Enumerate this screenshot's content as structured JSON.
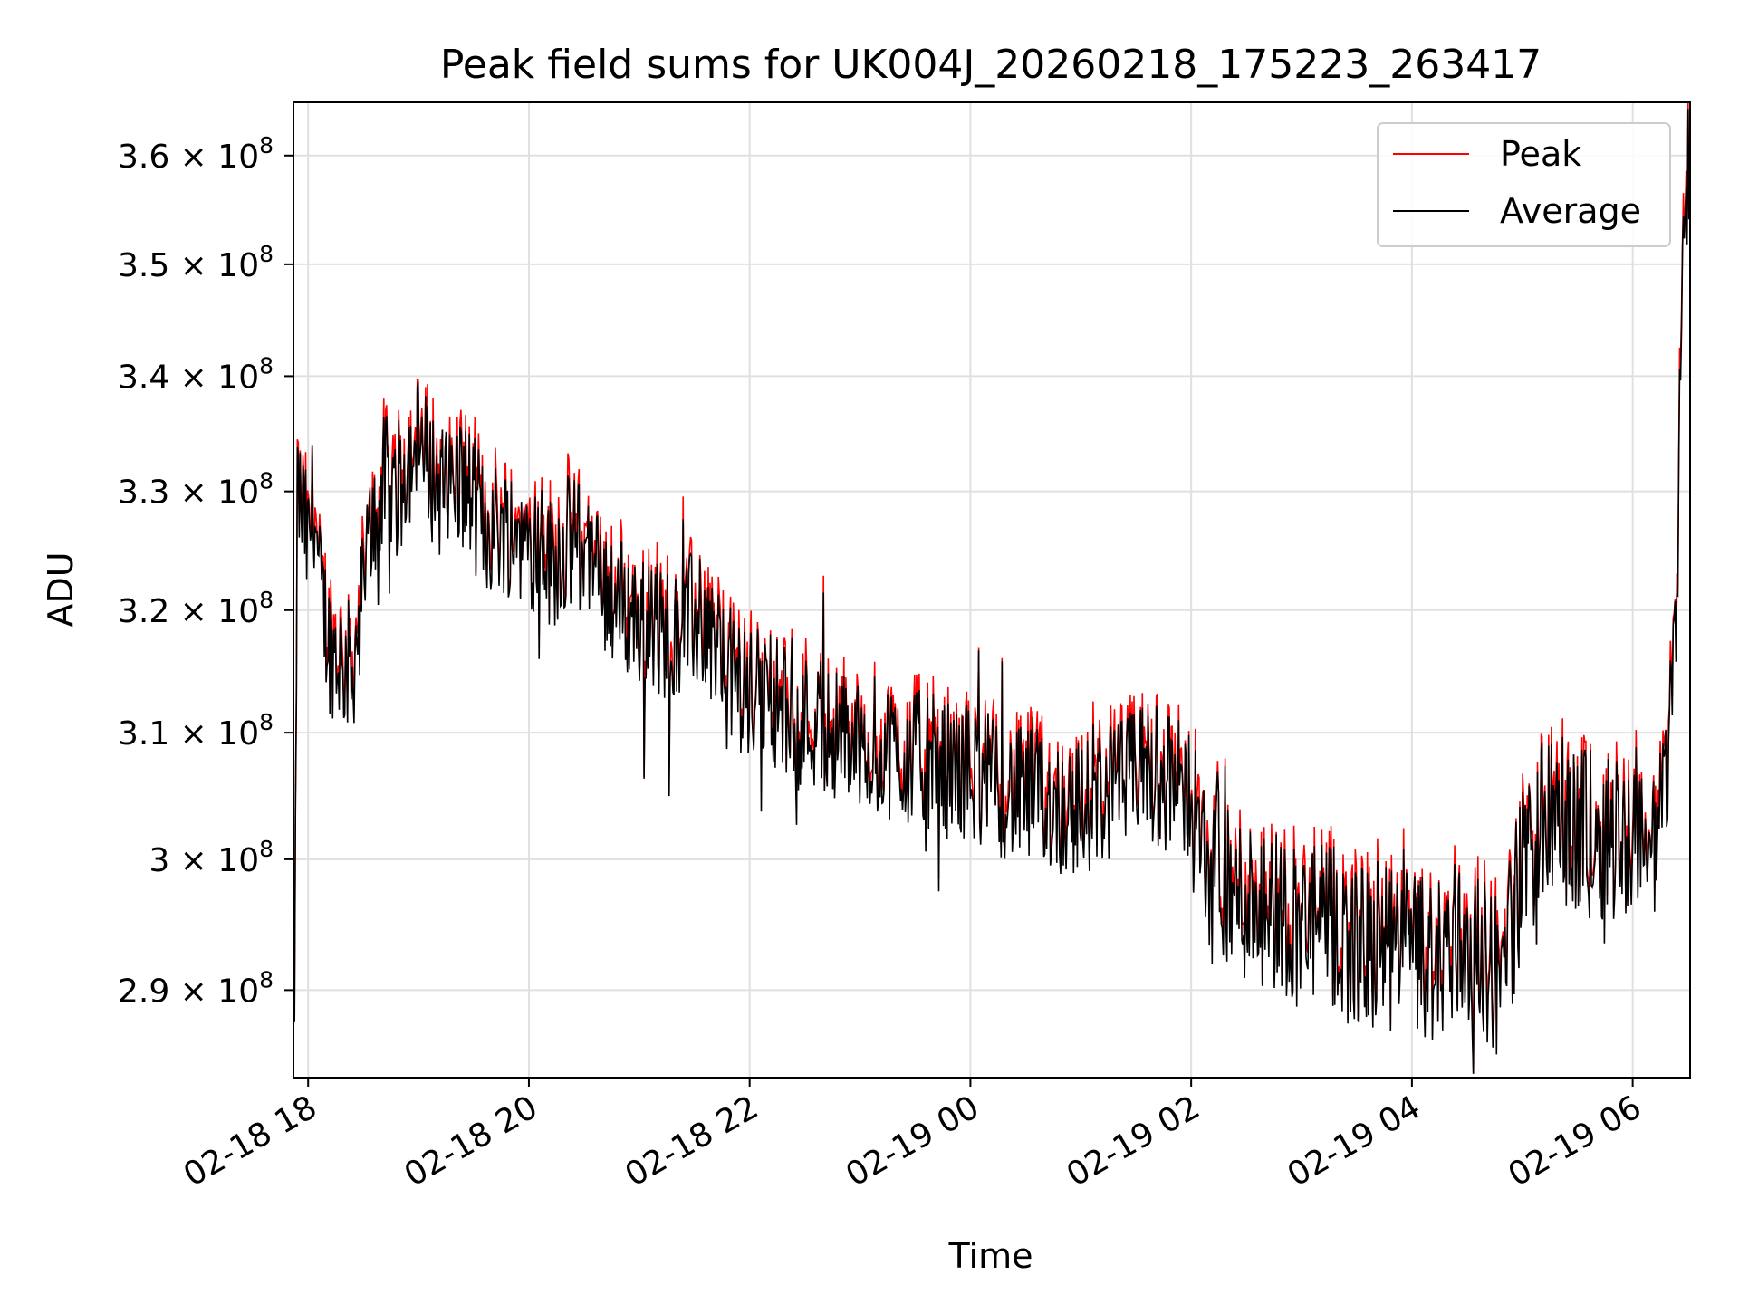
{
  "chart_data": {
    "type": "line",
    "title": "Peak field sums for UK004J_20260218_175223_263417",
    "xlabel": "Time",
    "ylabel": "ADU",
    "x_range": [
      "02-18 17:52",
      "02-19 06:32"
    ],
    "y_scale": "log",
    "ylim": [
      283500000,
      365000000
    ],
    "grid": true,
    "legend_position": "top-right",
    "x_ticks": [
      {
        "hours": 0,
        "label": "02-18 18"
      },
      {
        "hours": 2,
        "label": "02-18 20"
      },
      {
        "hours": 4,
        "label": "02-18 22"
      },
      {
        "hours": 6,
        "label": "02-19 00"
      },
      {
        "hours": 8,
        "label": "02-19 02"
      },
      {
        "hours": 10,
        "label": "02-19 04"
      },
      {
        "hours": 12,
        "label": "02-19 06"
      }
    ],
    "y_ticks": [
      {
        "value": 290000000,
        "mantissa": "2.9",
        "exponent": "8"
      },
      {
        "value": 300000000,
        "mantissa": "3",
        "exponent": "8"
      },
      {
        "value": 310000000,
        "mantissa": "3.1",
        "exponent": "8"
      },
      {
        "value": 320000000,
        "mantissa": "3.2",
        "exponent": "8"
      },
      {
        "value": 330000000,
        "mantissa": "3.3",
        "exponent": "8"
      },
      {
        "value": 340000000,
        "mantissa": "3.4",
        "exponent": "8"
      },
      {
        "value": 350000000,
        "mantissa": "3.5",
        "exponent": "8"
      },
      {
        "value": 360000000,
        "mantissa": "3.6",
        "exponent": "8"
      }
    ],
    "times_label": "x"
  },
  "sampled_series": {
    "description": "hours since 02-18 18:00, approximate value (x1e8 ADU) of the average curve",
    "x_hours": [
      -0.12,
      -0.1,
      -0.05,
      0.0,
      0.05,
      0.1,
      0.2,
      0.3,
      0.4,
      0.5,
      0.6,
      0.7,
      0.8,
      0.9,
      1.0,
      1.2,
      1.4,
      1.6,
      1.8,
      2.0,
      2.2,
      2.4,
      2.6,
      2.7,
      2.8,
      3.0,
      3.2,
      3.4,
      3.6,
      3.8,
      4.0,
      4.2,
      4.4,
      4.6,
      4.8,
      5.0,
      5.2,
      5.4,
      5.6,
      5.8,
      6.0,
      6.2,
      6.4,
      6.6,
      6.8,
      7.0,
      7.2,
      7.4,
      7.6,
      7.8,
      8.0,
      8.1,
      8.2,
      8.4,
      8.6,
      8.8,
      9.0,
      9.2,
      9.4,
      9.6,
      9.8,
      10.0,
      10.2,
      10.4,
      10.6,
      10.8,
      11.0,
      11.2,
      11.4,
      11.6,
      11.8,
      12.0,
      12.1,
      12.2,
      12.3,
      12.4,
      12.45,
      12.52
    ],
    "avg": [
      2.86,
      3.3,
      3.28,
      3.25,
      3.3,
      3.22,
      3.17,
      3.16,
      3.15,
      3.22,
      3.28,
      3.31,
      3.3,
      3.33,
      3.34,
      3.3,
      3.31,
      3.27,
      3.27,
      3.26,
      3.24,
      3.26,
      3.23,
      3.22,
      3.21,
      3.19,
      3.18,
      3.19,
      3.19,
      3.15,
      3.13,
      3.13,
      3.11,
      3.11,
      3.1,
      3.09,
      3.09,
      3.08,
      3.08,
      3.07,
      3.07,
      3.06,
      3.05,
      3.05,
      3.04,
      3.04,
      3.05,
      3.06,
      3.07,
      3.06,
      3.05,
      3.0,
      2.98,
      2.97,
      2.97,
      2.96,
      2.95,
      2.95,
      2.94,
      2.93,
      2.93,
      2.93,
      2.92,
      2.94,
      2.93,
      2.91,
      2.99,
      3.03,
      3.03,
      3.02,
      3.02,
      3.02,
      3.02,
      3.01,
      3.06,
      3.22,
      3.5,
      3.62
    ]
  },
  "legend": {
    "items": [
      {
        "label": "Peak",
        "color": "#ff0000"
      },
      {
        "label": "Average",
        "color": "#000000"
      }
    ]
  },
  "colors": {
    "peak": "#ff0000",
    "average": "#000000",
    "grid": "#e0e0e0",
    "axes": "#000000"
  }
}
